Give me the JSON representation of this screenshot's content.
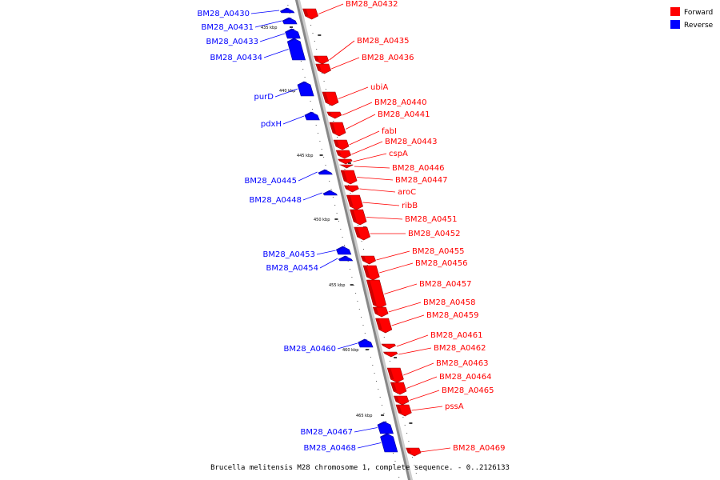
{
  "caption": "Brucella melitensis M28 chromosome 1, complete sequence. - 0..2126133",
  "legend": [
    {
      "label": "Forward",
      "color": "#ff0000"
    },
    {
      "label": "Reverse",
      "color": "#0000ff"
    }
  ],
  "colors": {
    "forward": "#ff0000",
    "reverse": "#0000ff",
    "backbone": "#888888"
  },
  "ticks": [
    "435 kbp",
    "440 kbp",
    "445 kbp",
    "450 kbp",
    "455 kbp",
    "460 kbp",
    "465 kbp"
  ],
  "genes": [
    {
      "label": "BM28_A0430",
      "strand": "reverse"
    },
    {
      "label": "BM28_A0431",
      "strand": "reverse"
    },
    {
      "label": "BM28_A0432",
      "strand": "forward"
    },
    {
      "label": "BM28_A0433",
      "strand": "reverse"
    },
    {
      "label": "BM28_A0434",
      "strand": "reverse"
    },
    {
      "label": "BM28_A0435",
      "strand": "forward"
    },
    {
      "label": "BM28_A0436",
      "strand": "forward"
    },
    {
      "label": "purD",
      "strand": "reverse"
    },
    {
      "label": "ubiA",
      "strand": "forward"
    },
    {
      "label": "BM28_A0440",
      "strand": "forward"
    },
    {
      "label": "BM28_A0441",
      "strand": "forward"
    },
    {
      "label": "pdxH",
      "strand": "reverse"
    },
    {
      "label": "fabI",
      "strand": "forward"
    },
    {
      "label": "BM28_A0443",
      "strand": "forward"
    },
    {
      "label": "cspA",
      "strand": "forward"
    },
    {
      "label": "BM28_A0446",
      "strand": "forward"
    },
    {
      "label": "BM28_A0445",
      "strand": "reverse"
    },
    {
      "label": "BM28_A0447",
      "strand": "forward"
    },
    {
      "label": "aroC",
      "strand": "forward"
    },
    {
      "label": "BM28_A0448",
      "strand": "reverse"
    },
    {
      "label": "ribB",
      "strand": "forward"
    },
    {
      "label": "BM28_A0451",
      "strand": "forward"
    },
    {
      "label": "BM28_A0452",
      "strand": "forward"
    },
    {
      "label": "BM28_A0453",
      "strand": "reverse"
    },
    {
      "label": "BM28_A0455",
      "strand": "forward"
    },
    {
      "label": "BM28_A0454",
      "strand": "reverse"
    },
    {
      "label": "BM28_A0456",
      "strand": "forward"
    },
    {
      "label": "BM28_A0457",
      "strand": "forward"
    },
    {
      "label": "BM28_A0458",
      "strand": "forward"
    },
    {
      "label": "BM28_A0459",
      "strand": "forward"
    },
    {
      "label": "BM28_A0461",
      "strand": "forward"
    },
    {
      "label": "BM28_A0460",
      "strand": "reverse"
    },
    {
      "label": "BM28_A0462",
      "strand": "forward"
    },
    {
      "label": "BM28_A0463",
      "strand": "forward"
    },
    {
      "label": "BM28_A0464",
      "strand": "forward"
    },
    {
      "label": "BM28_A0465",
      "strand": "forward"
    },
    {
      "label": "pssA",
      "strand": "forward"
    },
    {
      "label": "BM28_A0467",
      "strand": "reverse"
    },
    {
      "label": "BM28_A0468",
      "strand": "reverse"
    },
    {
      "label": "BM28_A0469",
      "strand": "forward"
    }
  ]
}
